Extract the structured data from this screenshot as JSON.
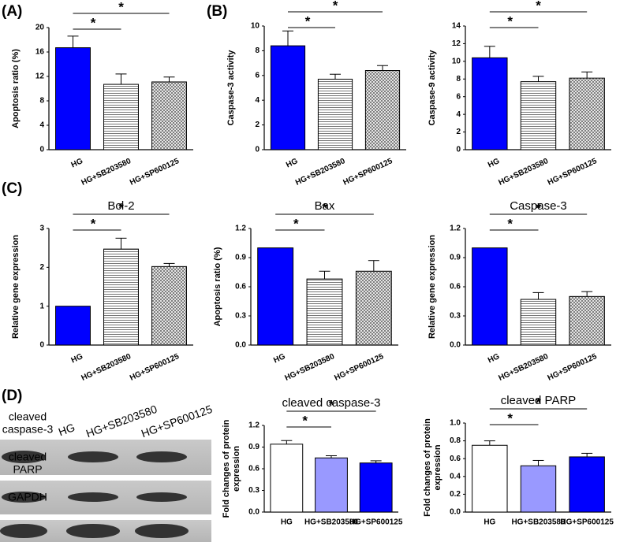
{
  "panels": [
    "(A)",
    "(B)",
    "(C)",
    "(D)"
  ],
  "blot": {
    "lanes": [
      "HG",
      "HG+SB203580",
      "HG+SP600125"
    ],
    "rows": [
      [
        "cleaved",
        "caspase-3"
      ],
      [
        "cleaved",
        "PARP"
      ],
      [
        "GAPDH"
      ]
    ]
  },
  "chart_data": [
    {
      "type": "bar",
      "y_label": [
        "Apoptosis ratio (%)"
      ],
      "categories": [
        "HG",
        "HG+SB203580",
        "HG+SP600125"
      ],
      "values": [
        16.7,
        10.7,
        11.1
      ],
      "errors": [
        1.9,
        1.7,
        0.8
      ],
      "ylim": [
        0,
        20
      ],
      "yticks": [
        0,
        4,
        8,
        12,
        16,
        20
      ],
      "colors": [
        "#0000ff",
        "#ffffff",
        "#ffffff"
      ],
      "hatches": [
        "none",
        "horizontal",
        "cross"
      ],
      "annotations": [
        "*",
        "*"
      ]
    },
    {
      "type": "bar",
      "y_label": [
        "Caspase-3 activity"
      ],
      "categories": [
        "HG",
        "HG+SB203580",
        "HG+SP600125"
      ],
      "values": [
        8.4,
        5.7,
        6.4
      ],
      "errors": [
        1.2,
        0.4,
        0.4
      ],
      "ylim": [
        0,
        10
      ],
      "yticks": [
        0,
        2,
        4,
        6,
        8,
        10
      ],
      "colors": [
        "#0000ff",
        "#ffffff",
        "#ffffff"
      ],
      "hatches": [
        "none",
        "horizontal",
        "cross"
      ],
      "annotations": [
        "*",
        "*"
      ]
    },
    {
      "type": "bar",
      "y_label": [
        "Caspase-9 activity"
      ],
      "categories": [
        "HG",
        "HG+SB203580",
        "HG+SP600125"
      ],
      "values": [
        10.4,
        7.7,
        8.1
      ],
      "errors": [
        1.3,
        0.6,
        0.7
      ],
      "ylim": [
        0,
        14
      ],
      "yticks": [
        0,
        2,
        4,
        6,
        8,
        10,
        12,
        14
      ],
      "colors": [
        "#0000ff",
        "#ffffff",
        "#ffffff"
      ],
      "hatches": [
        "none",
        "horizontal",
        "cross"
      ],
      "annotations": [
        "*",
        "*"
      ]
    },
    {
      "type": "bar",
      "title": "Bcl-2",
      "y_label": [
        "Relative gene expression"
      ],
      "categories": [
        "HG",
        "HG+SB203580",
        "HG+SP600125"
      ],
      "values": [
        1.0,
        2.47,
        2.02
      ],
      "errors": [
        0,
        0.28,
        0.08
      ],
      "ylim": [
        0,
        3
      ],
      "yticks": [
        0,
        1,
        2,
        3
      ],
      "colors": [
        "#0000ff",
        "#ffffff",
        "#ffffff"
      ],
      "hatches": [
        "none",
        "horizontal",
        "cross"
      ],
      "annotations": [
        "*",
        "*"
      ]
    },
    {
      "type": "bar",
      "title": "Bax",
      "y_label": [
        "Apoptosis ratio (%)"
      ],
      "categories": [
        "HG",
        "HG+SB203580",
        "HG+SP600125"
      ],
      "values": [
        1.0,
        0.68,
        0.76
      ],
      "errors": [
        0,
        0.08,
        0.11
      ],
      "ylim": [
        0,
        1.2
      ],
      "yticks": [
        {
          "value": 0,
          "label": "0.0"
        },
        0.3,
        0.6,
        0.9,
        1.2
      ],
      "colors": [
        "#0000ff",
        "#ffffff",
        "#ffffff"
      ],
      "hatches": [
        "none",
        "horizontal",
        "cross"
      ],
      "annotations": [
        "*",
        "*"
      ]
    },
    {
      "type": "bar",
      "title": "Caspase-3",
      "y_label": [
        "Relative gene expression"
      ],
      "categories": [
        "HG",
        "HG+SB203580",
        "HG+SP600125"
      ],
      "values": [
        1.0,
        0.47,
        0.5
      ],
      "errors": [
        0,
        0.07,
        0.05
      ],
      "ylim": [
        0,
        1.2
      ],
      "yticks": [
        {
          "value": 0,
          "label": "0.0"
        },
        0.3,
        0.6,
        0.9,
        1.2
      ],
      "colors": [
        "#0000ff",
        "#ffffff",
        "#ffffff"
      ],
      "hatches": [
        "none",
        "horizontal",
        "cross"
      ],
      "annotations": [
        "*",
        "*"
      ]
    },
    {
      "type": "bar",
      "title": "cleaved caspase-3",
      "y_label": [
        "Fold changes of protein",
        "expression"
      ],
      "categories": [
        "HG",
        "HG+SB203580",
        "HG+SP600125"
      ],
      "values": [
        0.94,
        0.75,
        0.68
      ],
      "errors": [
        0.05,
        0.03,
        0.03
      ],
      "ylim": [
        0,
        1.2
      ],
      "yticks": [
        {
          "value": 0,
          "label": "0.0"
        },
        0.3,
        0.6,
        0.9,
        1.2
      ],
      "colors": [
        "#ffffff",
        "#9999ff",
        "#0000ff"
      ],
      "hatches": [
        "none",
        "none",
        "none"
      ],
      "annotations": [
        "*",
        "*"
      ]
    },
    {
      "type": "bar",
      "title": "cleaved PARP",
      "y_label": [
        "Fold changes of protein",
        "expression"
      ],
      "categories": [
        "HG",
        "HG+SB203580",
        "HG+SP600125"
      ],
      "values": [
        0.75,
        0.52,
        0.62
      ],
      "errors": [
        0.05,
        0.06,
        0.04
      ],
      "ylim": [
        0,
        1.0
      ],
      "yticks": [
        {
          "value": 0,
          "label": "0.0"
        },
        0.2,
        0.4,
        0.6,
        0.8,
        {
          "value": 1,
          "label": "1.0"
        }
      ],
      "colors": [
        "#ffffff",
        "#9999ff",
        "#0000ff"
      ],
      "hatches": [
        "none",
        "none",
        "none"
      ],
      "annotations": [
        "*",
        "*"
      ]
    }
  ]
}
